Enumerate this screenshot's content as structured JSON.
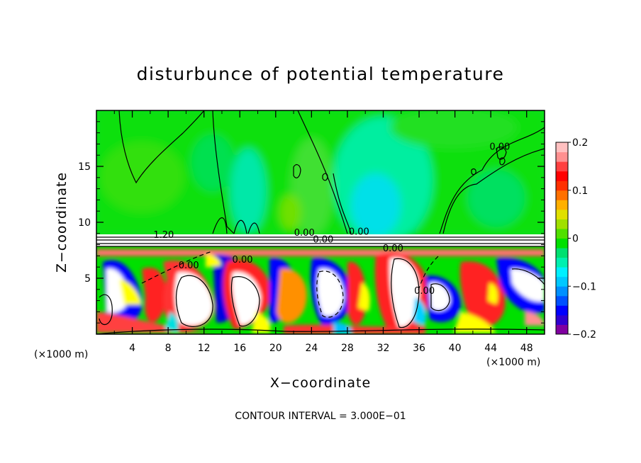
{
  "chart_data": {
    "type": "heatmap",
    "title": "disturbunce of potential temperature",
    "xlabel": "X−coordinate",
    "ylabel": "Z−coordinate",
    "x_unit_left": "(×1000 m)",
    "x_unit_right": "(×1000 m)",
    "footer": "CONTOUR INTERVAL = 3.000E−01",
    "xlim": [
      0,
      50
    ],
    "ylim": [
      0,
      20
    ],
    "x_ticks": [
      4,
      8,
      12,
      16,
      20,
      24,
      28,
      32,
      36,
      40,
      44,
      48
    ],
    "x_tick_labels": [
      "4",
      "8",
      "12",
      "16",
      "20",
      "24",
      "28",
      "32",
      "36",
      "40",
      "44",
      "48"
    ],
    "y_ticks": [
      5,
      10,
      15
    ],
    "y_tick_labels": [
      "5",
      "10",
      "15"
    ],
    "colorbar": {
      "range": [
        -0.2,
        0.2
      ],
      "ticks": [
        -0.2,
        -0.1,
        0,
        0.1,
        0.2
      ],
      "tick_labels": [
        "−0.2",
        "−0.1",
        "0",
        "0.1",
        "0.2"
      ],
      "colors": [
        "#8000a0",
        "#3000d0",
        "#0000ff",
        "#0050ff",
        "#0090ff",
        "#00c8ff",
        "#00f0ff",
        "#00f0b0",
        "#00e070",
        "#00e000",
        "#50e000",
        "#a0e000",
        "#e0e000",
        "#ffb000",
        "#ff7000",
        "#ff3000",
        "#ff0000",
        "#ff4040",
        "#ff9090",
        "#ffc0c0"
      ]
    },
    "contour_labels": [
      {
        "text": "1.20",
        "x": 7.5,
        "y": 8.6
      },
      {
        "text": "0.00",
        "x": 10.3,
        "y": 5.9
      },
      {
        "text": "0.00",
        "x": 16.3,
        "y": 6.4
      },
      {
        "text": "0.00",
        "x": 23.2,
        "y": 8.8
      },
      {
        "text": "0.00",
        "x": 25.3,
        "y": 8.2
      },
      {
        "text": "0.00",
        "x": 29.3,
        "y": 8.9
      },
      {
        "text": "0.00",
        "x": 33.1,
        "y": 7.4
      },
      {
        "text": "0.00",
        "x": 36.6,
        "y": 3.6
      },
      {
        "text": "0.00",
        "x": 45.0,
        "y": 16.5
      }
    ]
  }
}
